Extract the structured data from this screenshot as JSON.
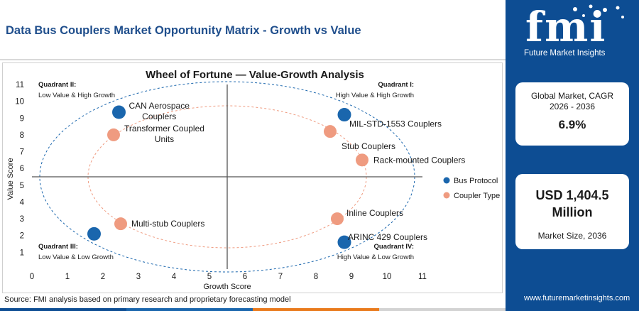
{
  "header": {
    "title": "Data Bus Couplers Market Opportunity Matrix - Growth vs Value"
  },
  "source": "Source: FMI analysis based on primary research and proprietary forecasting model",
  "brand": {
    "logo_text": "fmi",
    "logo_sub": "Future Market Insights",
    "website": "www.futuremarketinsights.com"
  },
  "stats": {
    "cagr_label": "Global Market, CAGR 2026 - 2036",
    "cagr_value": "6.9%",
    "size_value": "USD 1,404.5 Million",
    "size_label": "Market Size, 2036"
  },
  "colors": {
    "brand_blue": "#0d4d93",
    "bus_protocol": "#1a66ad",
    "coupler_type": "#ef9b80",
    "bottom_bar": [
      "#0d4d93",
      "#1a66ad",
      "#e97a1c",
      "#d3d3d3"
    ]
  },
  "chart_data": {
    "type": "scatter",
    "title": "Wheel of Fortune — Value-Growth Analysis",
    "xlabel": "Growth Score",
    "ylabel": "Value Score",
    "xlim": [
      0,
      11
    ],
    "ylim": [
      0,
      11
    ],
    "xticks": [
      0,
      1,
      2,
      3,
      4,
      5,
      6,
      7,
      8,
      9,
      10,
      11
    ],
    "yticks": [
      1,
      2,
      3,
      4,
      5,
      6,
      7,
      8,
      9,
      10,
      11
    ],
    "divider": {
      "x": 5.5,
      "y": 5.5
    },
    "quadrants": [
      {
        "name": "Quadrant II:",
        "desc": "Low Value & High Growth",
        "position": "top-left"
      },
      {
        "name": "Quadrant I:",
        "desc": "High Value & High Growth",
        "position": "top-right"
      },
      {
        "name": "Quadrant III:",
        "desc": "Low Value & Low Growth",
        "position": "bottom-left"
      },
      {
        "name": "Quadrant IV:",
        "desc": "High Value & Low Growth",
        "position": "bottom-right"
      }
    ],
    "legend_position": "right",
    "series": [
      {
        "name": "Bus Protocol",
        "color": "#1a66ad",
        "points": [
          {
            "label": "CAN Aerospace Couplers",
            "x": 2.45,
            "y": 9.35
          },
          {
            "label": "MIL-STD-1553 Couplers",
            "x": 8.8,
            "y": 9.2
          },
          {
            "label": "ARINC 429 Couplers",
            "x": 8.8,
            "y": 1.6
          },
          {
            "label": "",
            "x": 1.75,
            "y": 2.1
          }
        ]
      },
      {
        "name": "Coupler Type",
        "color": "#ef9b80",
        "points": [
          {
            "label": "Transformer Coupled Units",
            "x": 2.3,
            "y": 8.0
          },
          {
            "label": "Stub Couplers",
            "x": 8.4,
            "y": 8.2
          },
          {
            "label": "Rack-mounted Couplers",
            "x": 9.3,
            "y": 6.5
          },
          {
            "label": "Inline Couplers",
            "x": 8.6,
            "y": 3.0
          },
          {
            "label": "Multi-stub Couplers",
            "x": 2.5,
            "y": 2.7
          }
        ]
      }
    ]
  }
}
